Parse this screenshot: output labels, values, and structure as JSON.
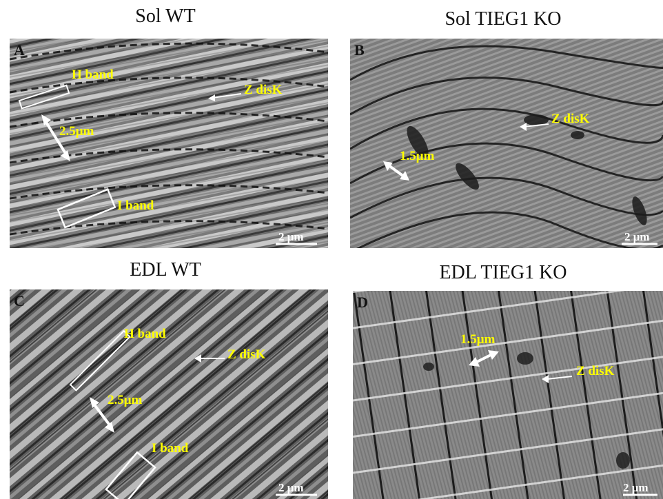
{
  "panels": [
    {
      "id": "A",
      "title": "Sol WT",
      "letter": "A",
      "labels": {
        "h_band": "H band",
        "z_disk": "Z disK",
        "spacing": "2.5μm",
        "i_band": "I band"
      },
      "scale_bar": "2 μm",
      "tone": "#8a8a8a"
    },
    {
      "id": "B",
      "title": "Sol TIEG1 KO",
      "letter": "B",
      "labels": {
        "z_disk": "Z disK",
        "spacing": "1.5μm"
      },
      "scale_bar": "2 μm",
      "tone": "#7b7b7b"
    },
    {
      "id": "C",
      "title": "EDL WT",
      "letter": "C",
      "labels": {
        "h_band": "H band",
        "z_disk": "Z disK",
        "spacing": "2.5μm",
        "i_band": "I band"
      },
      "scale_bar": "2 μm",
      "tone": "#727272"
    },
    {
      "id": "D",
      "title": "EDL TIEG1 KO",
      "letter": "D",
      "labels": {
        "z_disk": "Z disK",
        "spacing": "1.5μm"
      },
      "scale_bar": "2 μm",
      "tone": "#8c8c8c"
    }
  ]
}
